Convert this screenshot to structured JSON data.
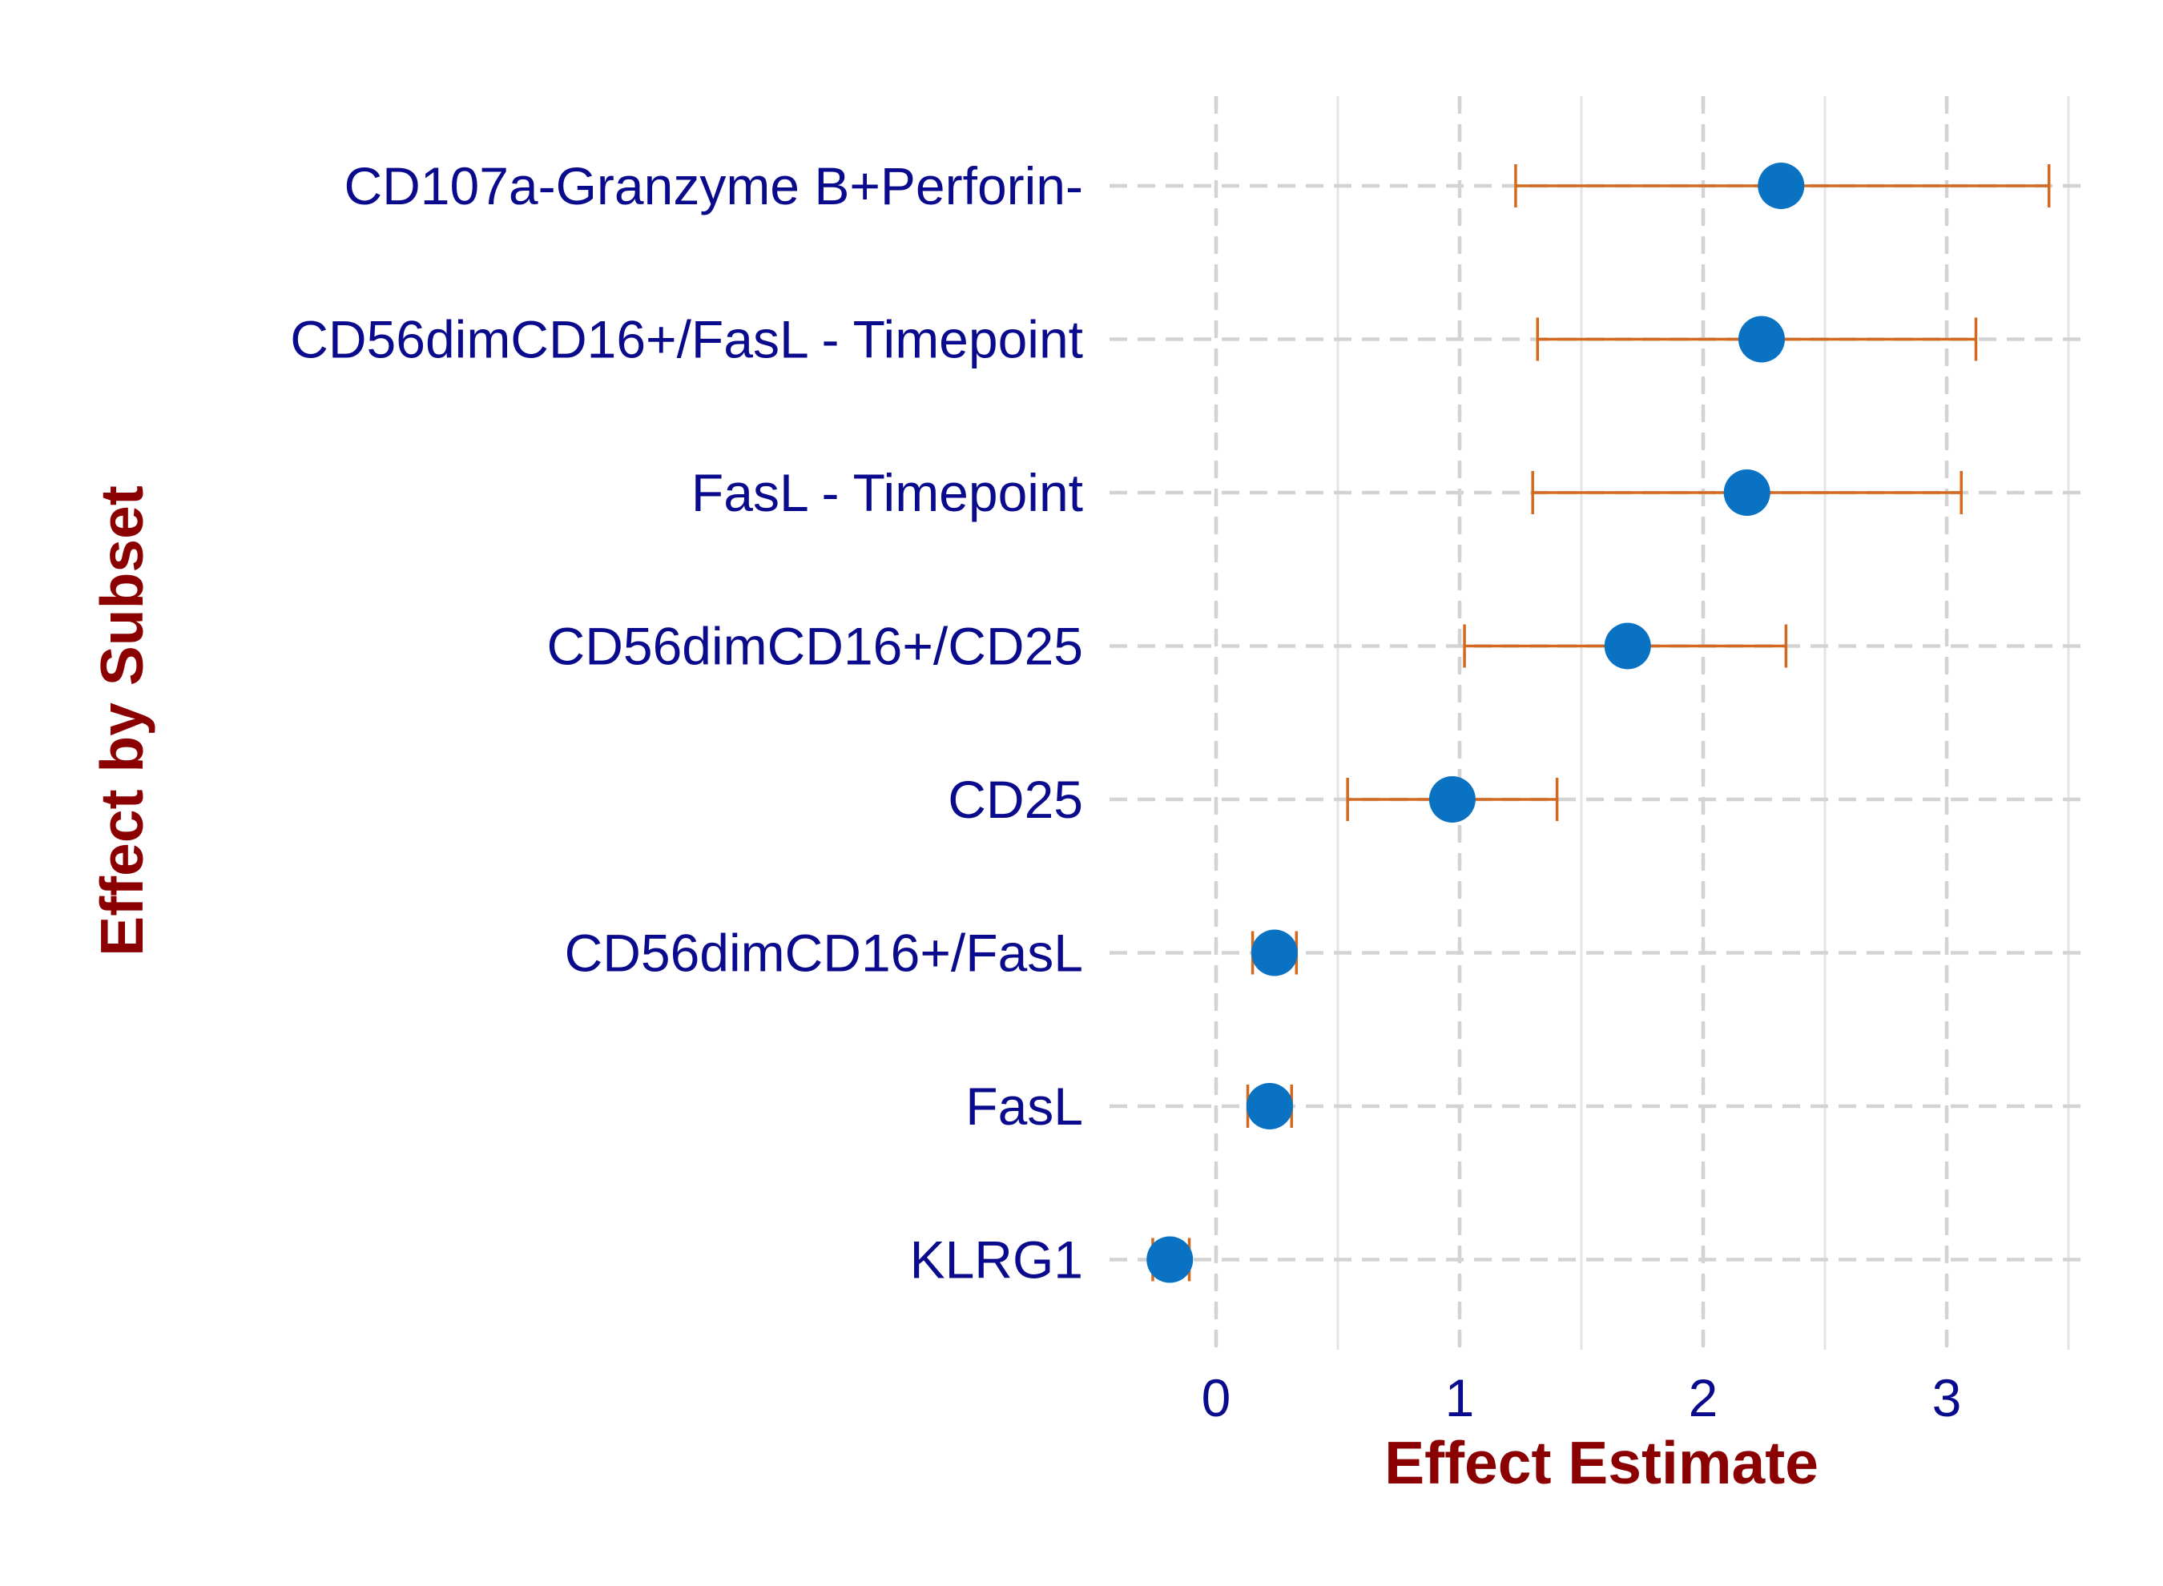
{
  "chart_data": {
    "type": "scatter",
    "subtype": "forest-plot",
    "title": "",
    "xlabel": "Effect Estimate",
    "ylabel": "Effect by Subset",
    "xlim": [
      -0.2,
      3.5
    ],
    "xticks": [
      0,
      1,
      2,
      3
    ],
    "grid": true,
    "legend": "none",
    "categories": [
      "CD107a-Granzyme B+Perforin-",
      "CD56dimCD16+/FasL - Timepoint",
      "FasL - Timepoint",
      "CD56dimCD16+/CD25",
      "CD25",
      "CD56dimCD16+/FasL",
      "FasL",
      "KLRG1"
    ],
    "series": [
      {
        "estimate": [
          2.32,
          2.24,
          2.18,
          1.69,
          0.97,
          0.24,
          0.22,
          -0.19
        ],
        "ci_lower": [
          1.23,
          1.32,
          1.3,
          1.02,
          0.54,
          0.15,
          0.13,
          -0.26
        ],
        "ci_upper": [
          3.42,
          3.12,
          3.06,
          2.34,
          1.4,
          0.33,
          0.31,
          -0.11
        ]
      }
    ],
    "colors": {
      "point": "#0a72c2",
      "errorbar": "#d2691e",
      "tick_text": "#0a0a8c",
      "axis_title": "#8b0000",
      "grid": "#d3d3d3"
    }
  }
}
